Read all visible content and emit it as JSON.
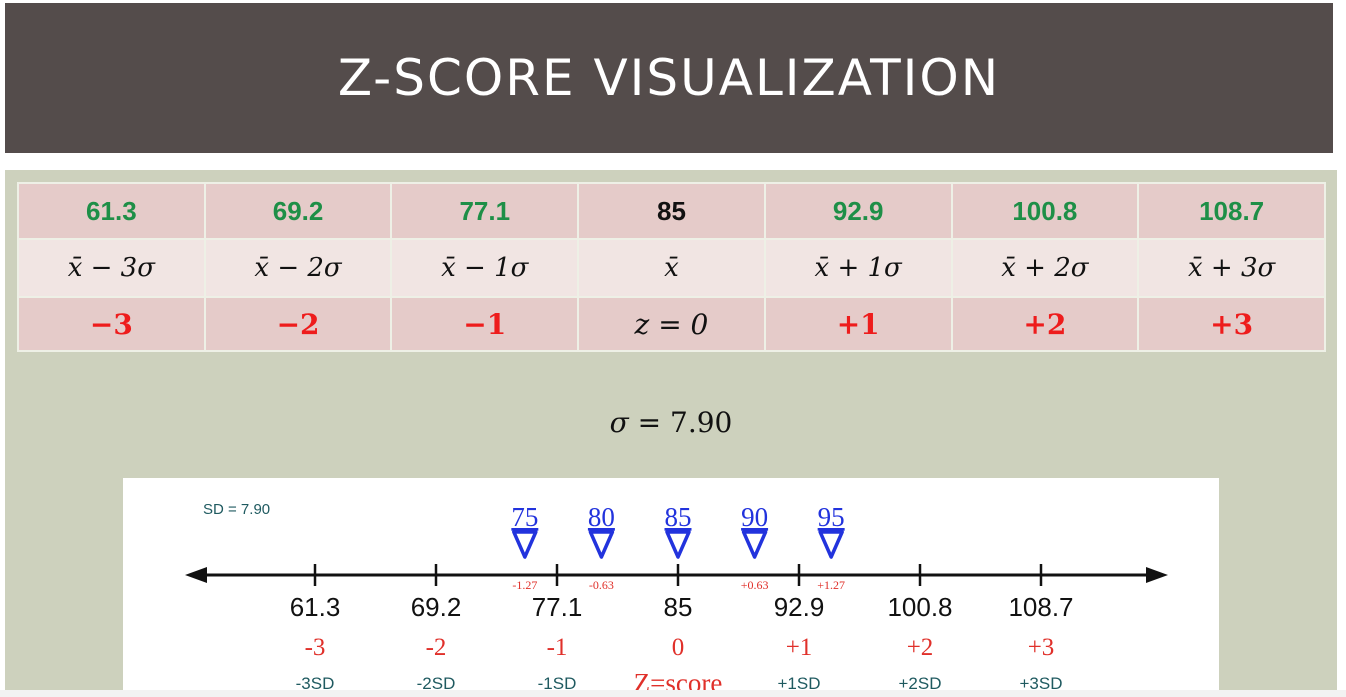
{
  "title": "Z-SCORE VISUALIZATION",
  "table": {
    "values": [
      "61.3",
      "69.2",
      "77.1",
      "85",
      "92.9",
      "100.8",
      "108.7"
    ],
    "expressions": [
      "x̄ − 3σ",
      "x̄ − 2σ",
      "x̄ − 1σ",
      "x̄",
      "x̄ + 1σ",
      "x̄ + 2σ",
      "x̄ + 3σ"
    ],
    "zscores": [
      "−3",
      "−2",
      "−1",
      "z = 0",
      "+1",
      "+2",
      "+3"
    ]
  },
  "sigma": {
    "symbol": "σ",
    "text": " = 7.90"
  },
  "number_line": {
    "sd_label": "SD = 7.90",
    "ticks": [
      {
        "value": "61.3",
        "z": "-3",
        "sd": "-3SD"
      },
      {
        "value": "69.2",
        "z": "-2",
        "sd": "-2SD"
      },
      {
        "value": "77.1",
        "z": "-1",
        "sd": "-1SD"
      },
      {
        "value": "85",
        "z": "0",
        "sd": ""
      },
      {
        "value": "92.9",
        "z": "+1",
        "sd": "+1SD"
      },
      {
        "value": "100.8",
        "z": "+2",
        "sd": "+2SD"
      },
      {
        "value": "108.7",
        "z": "+3",
        "sd": "+3SD"
      }
    ],
    "center_label": "Z=score",
    "markers": [
      {
        "value": "75",
        "z": "-1.27"
      },
      {
        "value": "80",
        "z": "-0.63"
      },
      {
        "value": "85",
        "z": ""
      },
      {
        "value": "90",
        "z": "+0.63"
      },
      {
        "value": "95",
        "z": "+1.27"
      }
    ],
    "colors": {
      "marker": "#2233dd",
      "zscore": "#e0302a",
      "sd": "#1f5a60",
      "axis": "#111111"
    }
  }
}
